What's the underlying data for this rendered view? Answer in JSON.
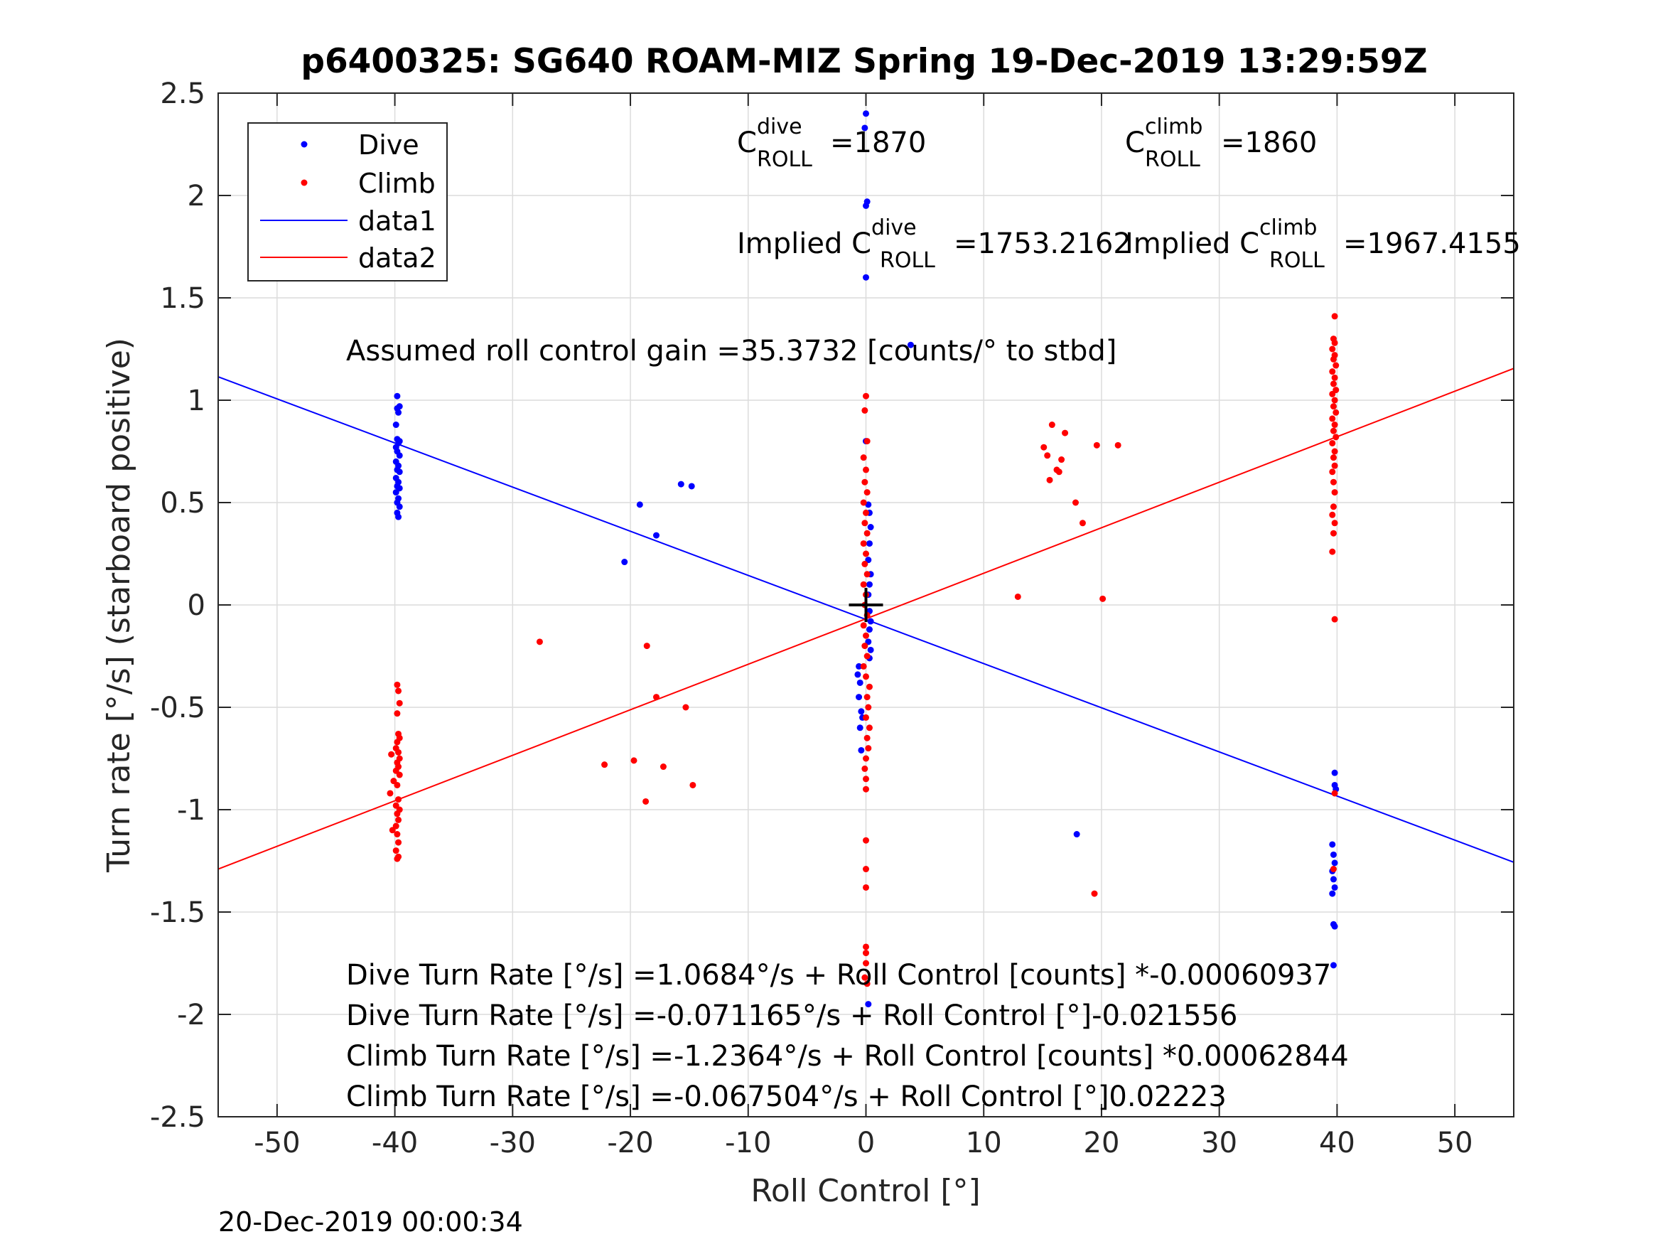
{
  "chart_data": {
    "type": "scatter",
    "title": "p6400325: SG640 ROAM-MIZ Spring 19-Dec-2019 13:29:59Z",
    "xlabel": "Roll Control [°]",
    "ylabel": "Turn rate [°/s] (starboard positive)",
    "xlim": [
      -55,
      55
    ],
    "ylim": [
      -2.5,
      2.5
    ],
    "grid": true,
    "legend_position": "top-left",
    "x_ticks": [
      -50,
      -40,
      -30,
      -20,
      -10,
      0,
      10,
      20,
      30,
      40,
      50
    ],
    "x_tick_labels": [
      "-50",
      "-40",
      "-30",
      "-20",
      "-10",
      "0",
      "10",
      "20",
      "30",
      "40",
      "50"
    ],
    "y_ticks": [
      -2.5,
      -2,
      -1.5,
      -1,
      -0.5,
      0,
      0.5,
      1,
      1.5,
      2,
      2.5
    ],
    "y_tick_labels": [
      "-2.5",
      "-2",
      "-1.5",
      "-1",
      "-0.5",
      "0",
      "0.5",
      "1",
      "1.5",
      "2",
      "2.5"
    ],
    "series": [
      {
        "name": "Dive",
        "kind": "points",
        "color": "#0000ff",
        "points": [
          [
            -39.8,
            1.02
          ],
          [
            -39.8,
            0.96
          ],
          [
            -39.6,
            0.97
          ],
          [
            -39.7,
            0.94
          ],
          [
            -39.9,
            0.88
          ],
          [
            -39.8,
            0.81
          ],
          [
            -39.6,
            0.8
          ],
          [
            -39.7,
            0.79
          ],
          [
            -39.9,
            0.77
          ],
          [
            -39.8,
            0.75
          ],
          [
            -39.6,
            0.73
          ],
          [
            -39.9,
            0.7
          ],
          [
            -39.7,
            0.68
          ],
          [
            -39.8,
            0.66
          ],
          [
            -39.6,
            0.65
          ],
          [
            -39.9,
            0.62
          ],
          [
            -39.7,
            0.6
          ],
          [
            -39.8,
            0.58
          ],
          [
            -39.6,
            0.57
          ],
          [
            -39.9,
            0.55
          ],
          [
            -39.7,
            0.52
          ],
          [
            -39.8,
            0.5
          ],
          [
            -39.6,
            0.48
          ],
          [
            -39.8,
            0.45
          ],
          [
            -39.7,
            0.43
          ],
          [
            -20.5,
            0.21
          ],
          [
            -19.2,
            0.49
          ],
          [
            -17.8,
            0.34
          ],
          [
            -15.7,
            0.59
          ],
          [
            -14.8,
            0.58
          ],
          [
            3.8,
            1.27
          ],
          [
            17.9,
            -1.12
          ],
          [
            0.0,
            2.4
          ],
          [
            -0.1,
            2.33
          ],
          [
            0.1,
            1.97
          ],
          [
            0.0,
            1.95
          ],
          [
            0.0,
            1.6
          ],
          [
            0.0,
            0.8
          ],
          [
            0.2,
            0.49
          ],
          [
            0.3,
            0.45
          ],
          [
            0.4,
            0.38
          ],
          [
            0.3,
            0.3
          ],
          [
            0.2,
            0.22
          ],
          [
            0.4,
            0.15
          ],
          [
            0.3,
            0.1
          ],
          [
            0.2,
            0.05
          ],
          [
            0.3,
            -0.03
          ],
          [
            0.4,
            -0.08
          ],
          [
            0.3,
            -0.12
          ],
          [
            0.2,
            -0.18
          ],
          [
            0.4,
            -0.22
          ],
          [
            0.3,
            -0.26
          ],
          [
            -0.6,
            -0.3
          ],
          [
            -0.7,
            -0.34
          ],
          [
            -0.5,
            -0.38
          ],
          [
            -0.6,
            -0.45
          ],
          [
            -0.4,
            -0.52
          ],
          [
            -0.3,
            -0.55
          ],
          [
            -0.5,
            -0.6
          ],
          [
            -0.4,
            -0.71
          ],
          [
            0.2,
            -1.95
          ],
          [
            39.8,
            -0.82
          ],
          [
            39.8,
            -0.88
          ],
          [
            39.9,
            -0.9
          ],
          [
            39.6,
            -1.17
          ],
          [
            39.7,
            -1.22
          ],
          [
            39.8,
            -1.26
          ],
          [
            39.6,
            -1.3
          ],
          [
            39.7,
            -1.34
          ],
          [
            39.8,
            -1.38
          ],
          [
            39.6,
            -1.41
          ],
          [
            39.7,
            -1.56
          ],
          [
            39.8,
            -1.57
          ],
          [
            39.7,
            -1.76
          ]
        ]
      },
      {
        "name": "Climb",
        "kind": "points",
        "color": "#ff0000",
        "points": [
          [
            -39.8,
            -0.39
          ],
          [
            -39.7,
            -0.42
          ],
          [
            -39.6,
            -0.48
          ],
          [
            -39.8,
            -0.53
          ],
          [
            -39.7,
            -0.63
          ],
          [
            -39.6,
            -0.65
          ],
          [
            -39.8,
            -0.67
          ],
          [
            -39.9,
            -0.7
          ],
          [
            -39.7,
            -0.72
          ],
          [
            -40.3,
            -0.73
          ],
          [
            -39.6,
            -0.75
          ],
          [
            -39.8,
            -0.77
          ],
          [
            -39.7,
            -0.79
          ],
          [
            -39.9,
            -0.81
          ],
          [
            -39.6,
            -0.83
          ],
          [
            -40.1,
            -0.86
          ],
          [
            -39.8,
            -0.88
          ],
          [
            -40.4,
            -0.92
          ],
          [
            -39.7,
            -0.95
          ],
          [
            -39.9,
            -0.98
          ],
          [
            -39.6,
            -1.0
          ],
          [
            -39.8,
            -1.02
          ],
          [
            -39.7,
            -1.05
          ],
          [
            -39.9,
            -1.08
          ],
          [
            -40.2,
            -1.1
          ],
          [
            -39.8,
            -1.12
          ],
          [
            -39.7,
            -1.16
          ],
          [
            -39.9,
            -1.2
          ],
          [
            -39.7,
            -1.23
          ],
          [
            -39.8,
            -1.24
          ],
          [
            -27.7,
            -0.18
          ],
          [
            -22.2,
            -0.78
          ],
          [
            -19.7,
            -0.76
          ],
          [
            -18.7,
            -0.96
          ],
          [
            -18.6,
            -0.2
          ],
          [
            -17.8,
            -0.45
          ],
          [
            -17.2,
            -0.79
          ],
          [
            -15.3,
            -0.5
          ],
          [
            -14.7,
            -0.88
          ],
          [
            12.9,
            0.04
          ],
          [
            15.1,
            0.77
          ],
          [
            15.4,
            0.73
          ],
          [
            15.6,
            0.61
          ],
          [
            15.8,
            0.88
          ],
          [
            16.2,
            0.66
          ],
          [
            16.4,
            0.65
          ],
          [
            16.6,
            0.71
          ],
          [
            16.9,
            0.84
          ],
          [
            17.8,
            0.5
          ],
          [
            18.4,
            0.4
          ],
          [
            19.4,
            -1.41
          ],
          [
            19.6,
            0.78
          ],
          [
            20.1,
            0.03
          ],
          [
            21.4,
            0.78
          ],
          [
            0.0,
            1.02
          ],
          [
            -0.1,
            0.95
          ],
          [
            0.1,
            0.8
          ],
          [
            -0.2,
            0.72
          ],
          [
            0.0,
            0.66
          ],
          [
            -0.1,
            0.6
          ],
          [
            0.1,
            0.55
          ],
          [
            -0.2,
            0.5
          ],
          [
            0.0,
            0.45
          ],
          [
            -0.1,
            0.4
          ],
          [
            0.1,
            0.35
          ],
          [
            -0.2,
            0.3
          ],
          [
            0.0,
            0.25
          ],
          [
            -0.1,
            0.2
          ],
          [
            0.1,
            0.15
          ],
          [
            -0.2,
            0.1
          ],
          [
            0.0,
            0.05
          ],
          [
            -0.1,
            0.0
          ],
          [
            0.1,
            -0.05
          ],
          [
            -0.2,
            -0.1
          ],
          [
            0.0,
            -0.15
          ],
          [
            -0.1,
            -0.2
          ],
          [
            0.1,
            -0.25
          ],
          [
            -0.2,
            -0.3
          ],
          [
            0.0,
            -0.35
          ],
          [
            0.3,
            -0.4
          ],
          [
            0.1,
            -0.45
          ],
          [
            0.2,
            -0.5
          ],
          [
            0.0,
            -0.55
          ],
          [
            0.3,
            -0.6
          ],
          [
            0.1,
            -0.65
          ],
          [
            0.2,
            -0.7
          ],
          [
            0.0,
            -0.75
          ],
          [
            -0.1,
            -0.8
          ],
          [
            0.0,
            -0.85
          ],
          [
            0.0,
            -0.9
          ],
          [
            0.0,
            -1.15
          ],
          [
            0.0,
            -1.29
          ],
          [
            0.0,
            -1.38
          ],
          [
            0.0,
            -1.67
          ],
          [
            0.0,
            -1.7
          ],
          [
            0.0,
            -1.75
          ],
          [
            -0.1,
            -1.82
          ],
          [
            0.1,
            -1.85
          ],
          [
            39.8,
            1.41
          ],
          [
            39.7,
            1.3
          ],
          [
            39.8,
            1.28
          ],
          [
            39.6,
            1.25
          ],
          [
            39.8,
            1.22
          ],
          [
            39.7,
            1.2
          ],
          [
            39.9,
            1.17
          ],
          [
            39.6,
            1.14
          ],
          [
            39.8,
            1.11
          ],
          [
            39.7,
            1.08
          ],
          [
            39.9,
            1.05
          ],
          [
            39.6,
            1.03
          ],
          [
            39.8,
            1.0
          ],
          [
            39.7,
            0.97
          ],
          [
            39.9,
            0.94
          ],
          [
            39.6,
            0.91
          ],
          [
            39.8,
            0.88
          ],
          [
            39.7,
            0.85
          ],
          [
            39.9,
            0.82
          ],
          [
            39.6,
            0.79
          ],
          [
            39.8,
            0.75
          ],
          [
            39.7,
            0.72
          ],
          [
            39.8,
            0.68
          ],
          [
            39.6,
            0.65
          ],
          [
            39.7,
            0.6
          ],
          [
            39.8,
            0.55
          ],
          [
            39.7,
            0.48
          ],
          [
            39.6,
            0.44
          ],
          [
            39.8,
            0.4
          ],
          [
            39.7,
            0.35
          ],
          [
            39.6,
            0.26
          ],
          [
            39.8,
            -0.07
          ],
          [
            39.8,
            -0.92
          ],
          [
            39.7,
            -1.29
          ]
        ]
      },
      {
        "name": "data1",
        "kind": "line",
        "color": "#0000ff",
        "intercept": -0.071165,
        "slope": -0.021556
      },
      {
        "name": "data2",
        "kind": "line",
        "color": "#ff0000",
        "intercept": -0.067504,
        "slope": 0.02223
      }
    ],
    "marker": {
      "x": 0,
      "y": 0,
      "symbol": "+",
      "color": "#000000"
    },
    "annotations": {
      "c_dive_label": "C",
      "c_dive_sup": "dive",
      "c_dive_sub": "ROLL",
      "c_dive_value": "=1870",
      "c_climb_label": "C",
      "c_climb_sup": "climb",
      "c_climb_sub": "ROLL",
      "c_climb_value": "=1860",
      "implied_dive_label": "Implied C",
      "implied_dive_sup": "dive",
      "implied_dive_sub": "ROLL",
      "implied_dive_value": "=1753.2162",
      "implied_climb_label": "Implied C",
      "implied_climb_sup": "climb",
      "implied_climb_sub": "ROLL",
      "implied_climb_value": "=1967.4155",
      "gain": "Assumed roll control gain =35.3732 [counts/° to stbd]",
      "fit_lines": [
        "Dive Turn Rate [°/s] =1.0684°/s + Roll Control [counts] *-0.00060937",
        "Dive Turn Rate [°/s] =-0.071165°/s + Roll Control [°]-0.021556",
        "Climb Turn Rate [°/s] =-1.2364°/s + Roll Control [counts] *0.00062844",
        "Climb Turn Rate [°/s] =-0.067504°/s + Roll Control [°]0.02223"
      ]
    }
  },
  "footer_timestamp": "20-Dec-2019 00:00:34"
}
